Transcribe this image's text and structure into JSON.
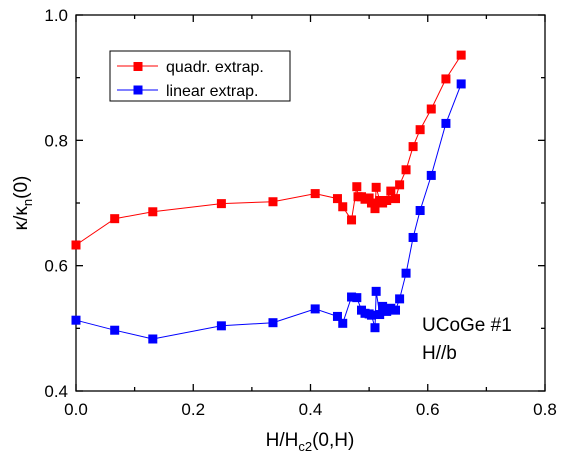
{
  "chart_data": {
    "type": "line",
    "xlim": [
      0.0,
      0.8
    ],
    "ylim": [
      0.4,
      1.0
    ],
    "x_ticks": [
      "0.0",
      "0.2",
      "0.4",
      "0.6",
      "0.8"
    ],
    "y_ticks": [
      "0.4",
      "0.6",
      "0.8",
      "1.0"
    ],
    "xlabel": {
      "main": "H/H",
      "sub": "c2",
      "tail": "(0,H)"
    },
    "ylabel": {
      "main": "κ/κ",
      "sub": "n",
      "tail": "(0)"
    },
    "grid": false,
    "legend_position": "top-left",
    "annotation": {
      "line1": "UCoGe  #1",
      "line2": "H//b"
    },
    "series": [
      {
        "name": "quadr. extrap.",
        "color": "#ff0000",
        "marker": "square",
        "points": [
          [
            0.0,
            0.633
          ],
          [
            0.066,
            0.675
          ],
          [
            0.131,
            0.686
          ],
          [
            0.248,
            0.699
          ],
          [
            0.336,
            0.702
          ],
          [
            0.408,
            0.715
          ],
          [
            0.446,
            0.707
          ],
          [
            0.455,
            0.694
          ],
          [
            0.47,
            0.673
          ],
          [
            0.479,
            0.726
          ],
          [
            0.481,
            0.71
          ],
          [
            0.487,
            0.71
          ],
          [
            0.493,
            0.706
          ],
          [
            0.5,
            0.708
          ],
          [
            0.504,
            0.7
          ],
          [
            0.51,
            0.691
          ],
          [
            0.512,
            0.725
          ],
          [
            0.518,
            0.704
          ],
          [
            0.523,
            0.7
          ],
          [
            0.53,
            0.704
          ],
          [
            0.537,
            0.719
          ],
          [
            0.545,
            0.707
          ],
          [
            0.552,
            0.729
          ],
          [
            0.563,
            0.753
          ],
          [
            0.575,
            0.79
          ],
          [
            0.587,
            0.817
          ],
          [
            0.606,
            0.85
          ],
          [
            0.631,
            0.898
          ],
          [
            0.657,
            0.936
          ]
        ]
      },
      {
        "name": "linear extrap.",
        "color": "#0000ff",
        "marker": "square",
        "points": [
          [
            0.0,
            0.513
          ],
          [
            0.066,
            0.497
          ],
          [
            0.131,
            0.483
          ],
          [
            0.248,
            0.504
          ],
          [
            0.336,
            0.509
          ],
          [
            0.408,
            0.531
          ],
          [
            0.446,
            0.519
          ],
          [
            0.455,
            0.508
          ],
          [
            0.47,
            0.55
          ],
          [
            0.479,
            0.549
          ],
          [
            0.487,
            0.529
          ],
          [
            0.493,
            0.524
          ],
          [
            0.5,
            0.523
          ],
          [
            0.504,
            0.521
          ],
          [
            0.51,
            0.501
          ],
          [
            0.512,
            0.559
          ],
          [
            0.518,
            0.522
          ],
          [
            0.523,
            0.535
          ],
          [
            0.53,
            0.527
          ],
          [
            0.537,
            0.532
          ],
          [
            0.545,
            0.529
          ],
          [
            0.552,
            0.547
          ],
          [
            0.563,
            0.588
          ],
          [
            0.575,
            0.645
          ],
          [
            0.587,
            0.688
          ],
          [
            0.606,
            0.744
          ],
          [
            0.631,
            0.827
          ],
          [
            0.657,
            0.89
          ]
        ]
      }
    ]
  }
}
